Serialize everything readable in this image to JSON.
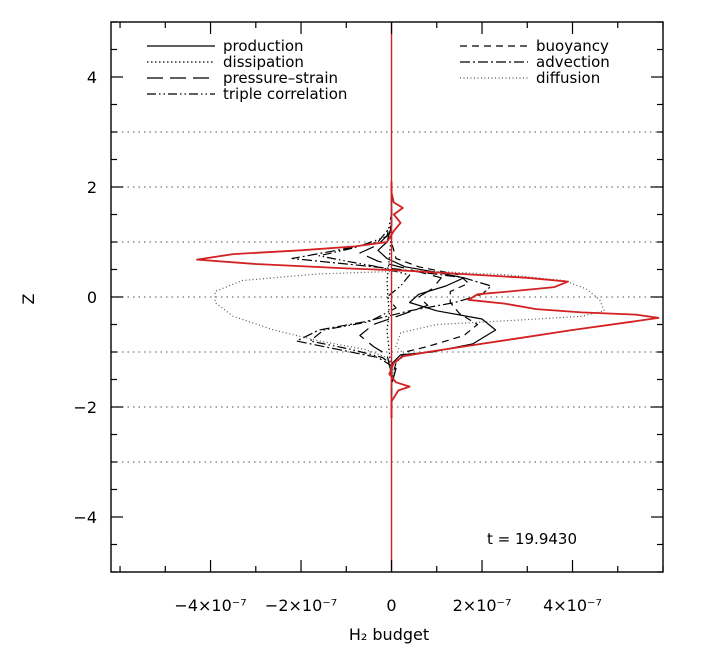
{
  "chart_data": {
    "type": "line",
    "xlabel": "H₂ budget",
    "ylabel": "Z",
    "xlim": [
      -6.2e-07,
      6e-07
    ],
    "ylim": [
      -5,
      5
    ],
    "x_ticks": [
      {
        "value": -4e-07,
        "label": "−4×10⁻⁷"
      },
      {
        "value": -2e-07,
        "label": "−2×10⁻⁷"
      },
      {
        "value": 0,
        "label": "0"
      },
      {
        "value": 2e-07,
        "label": "2×10⁻⁷"
      },
      {
        "value": 4e-07,
        "label": "4×10⁻⁷"
      }
    ],
    "y_ticks": [
      -4,
      -2,
      0,
      2,
      4
    ],
    "y_tick_labels": [
      "−4",
      "−2",
      "0",
      "2",
      "4"
    ],
    "grid_lines_y": [
      -3,
      -2,
      -1,
      0,
      1,
      2,
      3
    ],
    "annotation": "t = 19.9430",
    "legend": {
      "left": [
        "production",
        "dissipation",
        "pressure–strain",
        "triple correlation"
      ],
      "right": [
        "buoyancy",
        "advection",
        "diffusion"
      ]
    },
    "series": [
      {
        "name": "production",
        "style": "solid",
        "color": "#000000",
        "points": [
          [
            0,
            -2.2
          ],
          [
            0,
            -1.5
          ],
          [
            2e-09,
            -1.2
          ],
          [
            2e-08,
            -1.05
          ],
          [
            9e-08,
            -1.0
          ],
          [
            1.8e-07,
            -0.85
          ],
          [
            2.3e-07,
            -0.6
          ],
          [
            2e-07,
            -0.4
          ],
          [
            1e-07,
            -0.25
          ],
          [
            4e-08,
            -0.1
          ],
          [
            6e-08,
            0.05
          ],
          [
            1.2e-07,
            0.2
          ],
          [
            1.6e-07,
            0.35
          ],
          [
            1e-07,
            0.45
          ],
          [
            3e-08,
            0.55
          ],
          [
            -1e-08,
            0.7
          ],
          [
            -3e-08,
            0.85
          ],
          [
            -1e-08,
            1.0
          ],
          [
            0,
            1.3
          ],
          [
            0,
            2.1
          ]
        ]
      },
      {
        "name": "dissipation",
        "style": "dotted",
        "color": "#000000",
        "points": [
          [
            0,
            -2.2
          ],
          [
            0,
            -1.5
          ],
          [
            -5e-09,
            -1.0
          ],
          [
            -1e-08,
            -0.6
          ],
          [
            -5e-09,
            -0.3
          ],
          [
            -8e-09,
            0
          ],
          [
            -1e-08,
            0.3
          ],
          [
            -5e-09,
            0.7
          ],
          [
            0,
            1.2
          ],
          [
            0,
            2.1
          ]
        ]
      },
      {
        "name": "pressure–strain",
        "style": "dashed-long",
        "color": "#000000",
        "points": [
          [
            0,
            -2.2
          ],
          [
            0,
            -1.4
          ],
          [
            -1e-08,
            -1.05
          ],
          [
            -4e-08,
            -0.9
          ],
          [
            -7e-08,
            -0.7
          ],
          [
            -4e-08,
            -0.5
          ],
          [
            3e-08,
            -0.3
          ],
          [
            8e-08,
            -0.15
          ],
          [
            6e-08,
            0
          ],
          [
            9e-08,
            0.15
          ],
          [
            1.1e-07,
            0.35
          ],
          [
            4e-08,
            0.5
          ],
          [
            -3e-08,
            0.65
          ],
          [
            -7e-08,
            0.8
          ],
          [
            -3e-08,
            0.95
          ],
          [
            0,
            1.2
          ],
          [
            0,
            2.1
          ]
        ]
      },
      {
        "name": "triple correlation",
        "style": "dash-dot-dot",
        "color": "#000000",
        "points": [
          [
            0,
            -2.2
          ],
          [
            0,
            -1.6
          ],
          [
            1e-08,
            -1.3
          ],
          [
            -2e-08,
            -1.1
          ],
          [
            -9e-08,
            -0.95
          ],
          [
            -1.8e-07,
            -0.8
          ],
          [
            -1.5e-07,
            -0.6
          ],
          [
            -5e-08,
            -0.45
          ],
          [
            1e-08,
            -0.2
          ],
          [
            -1e-08,
            0
          ],
          [
            2e-08,
            0.2
          ],
          [
            4e-08,
            0.4
          ],
          [
            -3e-08,
            0.55
          ],
          [
            -1e-07,
            0.65
          ],
          [
            -1.6e-07,
            0.75
          ],
          [
            -8e-08,
            0.9
          ],
          [
            -1e-08,
            1.1
          ],
          [
            0,
            1.5
          ],
          [
            0,
            2.1
          ]
        ]
      },
      {
        "name": "buoyancy",
        "style": "dashed",
        "color": "#000000",
        "points": [
          [
            0,
            -2.2
          ],
          [
            0,
            -1.5
          ],
          [
            1e-08,
            -1.2
          ],
          [
            3e-08,
            -1.0
          ],
          [
            8e-08,
            -0.9
          ],
          [
            1.6e-07,
            -0.7
          ],
          [
            1.9e-07,
            -0.5
          ],
          [
            1.5e-07,
            -0.3
          ],
          [
            1.3e-07,
            -0.1
          ],
          [
            1.3e-07,
            0.1
          ],
          [
            1.7e-07,
            0.25
          ],
          [
            1.5e-07,
            0.4
          ],
          [
            6e-08,
            0.55
          ],
          [
            1e-08,
            0.7
          ],
          [
            0,
            1.0
          ],
          [
            0,
            2.1
          ]
        ]
      },
      {
        "name": "advection",
        "style": "dash-dot",
        "color": "#000000",
        "points": [
          [
            0,
            -2.2
          ],
          [
            0,
            -1.6
          ],
          [
            1e-08,
            -1.3
          ],
          [
            -3e-08,
            -1.1
          ],
          [
            -1.2e-07,
            -0.95
          ],
          [
            -2.1e-07,
            -0.8
          ],
          [
            -1.6e-07,
            -0.6
          ],
          [
            -6e-08,
            -0.45
          ],
          [
            4e-08,
            -0.25
          ],
          [
            1.4e-07,
            -0.1
          ],
          [
            2e-07,
            0.05
          ],
          [
            2.2e-07,
            0.2
          ],
          [
            1.6e-07,
            0.35
          ],
          [
            2e-08,
            0.5
          ],
          [
            -1e-07,
            0.6
          ],
          [
            -2.2e-07,
            0.7
          ],
          [
            -1.2e-07,
            0.85
          ],
          [
            -3e-08,
            1.0
          ],
          [
            0,
            1.3
          ],
          [
            0,
            2.1
          ]
        ]
      },
      {
        "name": "diffusion",
        "style": "dotted-fine",
        "color": "#555555",
        "points": [
          [
            0,
            -2.2
          ],
          [
            0,
            -1.4
          ],
          [
            -1e-08,
            -1.1
          ],
          [
            -6e-08,
            -0.95
          ],
          [
            -1.6e-07,
            -0.8
          ],
          [
            -2.6e-07,
            -0.6
          ],
          [
            -3.5e-07,
            -0.35
          ],
          [
            -3.9e-07,
            -0.1
          ],
          [
            -3.9e-07,
            0.1
          ],
          [
            -3.3e-07,
            0.3
          ],
          [
            -1.6e-07,
            0.42
          ],
          [
            6e-08,
            0.48
          ],
          [
            2.6e-07,
            0.4
          ],
          [
            3.8e-07,
            0.3
          ],
          [
            4.3e-07,
            0.15
          ],
          [
            4.6e-07,
            -0.05
          ],
          [
            4.7e-07,
            -0.25
          ],
          [
            4.2e-07,
            -0.35
          ],
          [
            2.8e-07,
            -0.42
          ],
          [
            1e-07,
            -0.5
          ],
          [
            2e-08,
            -0.65
          ],
          [
            1e-08,
            -0.9
          ],
          [
            3e-08,
            -1.05
          ],
          [
            1e-08,
            -1.2
          ],
          [
            0,
            -1.5
          ],
          [
            0,
            2.1
          ]
        ]
      },
      {
        "name": "",
        "style": "solid",
        "color": "#d42020",
        "points": [
          [
            0,
            -2.2
          ],
          [
            0,
            -1.9
          ],
          [
            1.5e-08,
            -1.7
          ],
          [
            4e-08,
            -1.63
          ],
          [
            1e-08,
            -1.55
          ],
          [
            -5e-09,
            -1.4
          ],
          [
            5e-09,
            -1.2
          ],
          [
            2.5e-08,
            -1.08
          ],
          [
            8e-08,
            -1.0
          ],
          [
            1.6e-07,
            -0.9
          ],
          [
            2.8e-07,
            -0.75
          ],
          [
            4e-07,
            -0.6
          ],
          [
            5.3e-07,
            -0.45
          ],
          [
            5.9e-07,
            -0.38
          ],
          [
            5.4e-07,
            -0.32
          ],
          [
            4.2e-07,
            -0.28
          ],
          [
            3.2e-07,
            -0.22
          ],
          [
            2.5e-07,
            -0.12
          ],
          [
            1.7e-07,
            -0.05
          ],
          [
            1.9e-07,
            0.05
          ],
          [
            2.6e-07,
            0.1
          ],
          [
            3.6e-07,
            0.18
          ],
          [
            3.9e-07,
            0.28
          ],
          [
            3e-07,
            0.35
          ],
          [
            1.5e-07,
            0.42
          ],
          [
            3e-08,
            0.48
          ],
          [
            -1e-07,
            0.52
          ],
          [
            -3e-07,
            0.6
          ],
          [
            -4.3e-07,
            0.68
          ],
          [
            -3.5e-07,
            0.78
          ],
          [
            -2e-07,
            0.85
          ],
          [
            -8e-08,
            0.92
          ],
          [
            -1e-08,
            1.0
          ],
          [
            5e-09,
            1.2
          ],
          [
            2e-08,
            1.35
          ],
          [
            5e-09,
            1.5
          ],
          [
            2.5e-08,
            1.62
          ],
          [
            5e-09,
            1.72
          ],
          [
            0,
            1.9
          ],
          [
            0,
            2.1
          ]
        ]
      }
    ]
  }
}
